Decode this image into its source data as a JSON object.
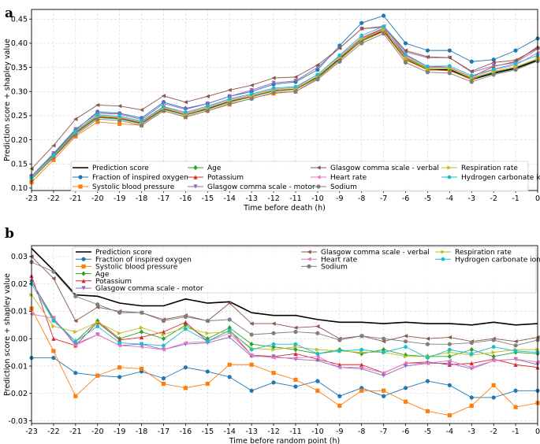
{
  "chart_data": [
    {
      "type": "line",
      "panel_label": "a",
      "xlabel": "Time before death (h)",
      "ylabel": "Prediction score + shapley value",
      "x": [
        -23,
        -22,
        -21,
        -20,
        -19,
        -18,
        -17,
        -16,
        -15,
        -14,
        -13,
        -12,
        -11,
        -10,
        -9,
        -8,
        -7,
        -6,
        -5,
        -4,
        -3,
        -2,
        -1,
        0
      ],
      "xlim": [
        -23,
        0
      ],
      "ylim": [
        0.095,
        0.47
      ],
      "yticks": [
        0.1,
        0.15,
        0.2,
        0.25,
        0.3,
        0.35,
        0.4,
        0.45
      ],
      "grid": true,
      "legend_position": "bottom",
      "series": [
        {
          "name": "Prediction score",
          "color": "#000000",
          "marker": "none",
          "values": [
            0.12,
            0.165,
            0.215,
            0.248,
            0.245,
            0.235,
            0.265,
            0.252,
            0.265,
            0.28,
            0.29,
            0.302,
            0.305,
            0.33,
            0.368,
            0.405,
            0.425,
            0.368,
            0.345,
            0.345,
            0.325,
            0.338,
            0.348,
            0.365
          ]
        },
        {
          "name": "Fraction of inspired oxygen",
          "color": "#1f77b4",
          "marker": "circle",
          "values": [
            0.125,
            0.17,
            0.22,
            0.258,
            0.255,
            0.245,
            0.278,
            0.265,
            0.275,
            0.29,
            0.3,
            0.315,
            0.32,
            0.345,
            0.395,
            0.442,
            0.457,
            0.4,
            0.385,
            0.385,
            0.362,
            0.366,
            0.385,
            0.41
          ]
        },
        {
          "name": "Systolic blood pressure",
          "color": "#ff7f0e",
          "marker": "square",
          "values": [
            0.112,
            0.158,
            0.207,
            0.237,
            0.233,
            0.23,
            0.26,
            0.247,
            0.26,
            0.273,
            0.286,
            0.296,
            0.3,
            0.327,
            0.365,
            0.405,
            0.424,
            0.365,
            0.345,
            0.343,
            0.325,
            0.342,
            0.35,
            0.368
          ]
        },
        {
          "name": "Age",
          "color": "#2ca02c",
          "marker": "diamond",
          "values": [
            0.118,
            0.164,
            0.213,
            0.246,
            0.243,
            0.233,
            0.263,
            0.251,
            0.263,
            0.278,
            0.289,
            0.301,
            0.304,
            0.329,
            0.367,
            0.406,
            0.428,
            0.37,
            0.348,
            0.347,
            0.327,
            0.34,
            0.35,
            0.367
          ]
        },
        {
          "name": "Potassium",
          "color": "#d62728",
          "marker": "triangle",
          "values": [
            0.118,
            0.165,
            0.214,
            0.248,
            0.245,
            0.234,
            0.265,
            0.252,
            0.265,
            0.28,
            0.29,
            0.303,
            0.305,
            0.331,
            0.37,
            0.41,
            0.43,
            0.375,
            0.352,
            0.35,
            0.33,
            0.352,
            0.362,
            0.393
          ]
        },
        {
          "name": "Glasgow comma scale - motor",
          "color": "#9467bd",
          "marker": "triangle-down",
          "values": [
            0.125,
            0.172,
            0.222,
            0.255,
            0.253,
            0.242,
            0.275,
            0.263,
            0.275,
            0.29,
            0.303,
            0.318,
            0.322,
            0.35,
            0.39,
            0.43,
            0.433,
            0.382,
            0.37,
            0.37,
            0.34,
            0.353,
            0.36,
            0.388
          ]
        },
        {
          "name": "Glasgow comma scale - verbal",
          "color": "#8c564b",
          "marker": "triangle-left",
          "values": [
            0.14,
            0.188,
            0.243,
            0.272,
            0.27,
            0.262,
            0.291,
            0.278,
            0.29,
            0.303,
            0.313,
            0.328,
            0.33,
            0.355,
            0.39,
            0.43,
            0.435,
            0.385,
            0.372,
            0.37,
            0.342,
            0.36,
            0.365,
            0.39
          ]
        },
        {
          "name": "Heart rate",
          "color": "#e377c2",
          "marker": "triangle-left",
          "values": [
            0.121,
            0.167,
            0.217,
            0.25,
            0.247,
            0.237,
            0.268,
            0.255,
            0.268,
            0.283,
            0.293,
            0.305,
            0.308,
            0.335,
            0.373,
            0.412,
            0.432,
            0.372,
            0.35,
            0.35,
            0.33,
            0.345,
            0.355,
            0.38
          ]
        },
        {
          "name": "Sodium",
          "color": "#7f7f7f",
          "marker": "circle",
          "values": [
            0.118,
            0.163,
            0.21,
            0.243,
            0.24,
            0.23,
            0.26,
            0.248,
            0.26,
            0.275,
            0.285,
            0.298,
            0.3,
            0.325,
            0.362,
            0.4,
            0.42,
            0.36,
            0.34,
            0.338,
            0.32,
            0.335,
            0.345,
            0.363
          ]
        },
        {
          "name": "Respiration rate",
          "color": "#bcbd22",
          "marker": "triangle-right",
          "values": [
            0.119,
            0.166,
            0.216,
            0.249,
            0.246,
            0.236,
            0.266,
            0.253,
            0.266,
            0.281,
            0.291,
            0.303,
            0.306,
            0.332,
            0.37,
            0.408,
            0.428,
            0.368,
            0.347,
            0.348,
            0.328,
            0.341,
            0.351,
            0.368
          ]
        },
        {
          "name": "Hydrogen carbonate ion",
          "color": "#17becf",
          "marker": "hexagon",
          "values": [
            0.122,
            0.168,
            0.218,
            0.252,
            0.249,
            0.239,
            0.269,
            0.257,
            0.27,
            0.285,
            0.295,
            0.307,
            0.31,
            0.335,
            0.375,
            0.416,
            0.435,
            0.377,
            0.352,
            0.353,
            0.333,
            0.346,
            0.358,
            0.375
          ]
        }
      ]
    },
    {
      "type": "line",
      "panel_label": "b",
      "xlabel": "Time before random point (h)",
      "ylabel": "Prediction score + shapley value",
      "x": [
        -23,
        -22,
        -21,
        -20,
        -19,
        -18,
        -17,
        -16,
        -15,
        -14,
        -13,
        -12,
        -11,
        -10,
        -9,
        -8,
        -7,
        -6,
        -5,
        -4,
        -3,
        -2,
        -1,
        0
      ],
      "xlim": [
        -23,
        0
      ],
      "ylim": [
        -0.031,
        0.034
      ],
      "yticks": [
        -0.03,
        -0.02,
        -0.01,
        0.0,
        0.01,
        0.02,
        0.03
      ],
      "grid": true,
      "legend_position": "top-right",
      "series": [
        {
          "name": "Prediction score",
          "color": "#000000",
          "marker": "none",
          "values": [
            0.033,
            0.025,
            0.016,
            0.0155,
            0.013,
            0.012,
            0.012,
            0.0145,
            0.013,
            0.0135,
            0.0095,
            0.0085,
            0.0085,
            0.007,
            0.006,
            0.006,
            0.0055,
            0.006,
            0.0055,
            0.0055,
            0.005,
            0.006,
            0.005,
            0.0055
          ]
        },
        {
          "name": "Fraction of inspired oxygen",
          "color": "#1f77b4",
          "marker": "circle",
          "values": [
            -0.007,
            -0.007,
            -0.0125,
            -0.0135,
            -0.014,
            -0.012,
            -0.0145,
            -0.0105,
            -0.012,
            -0.014,
            -0.019,
            -0.016,
            -0.0175,
            -0.0155,
            -0.021,
            -0.018,
            -0.021,
            -0.018,
            -0.0155,
            -0.017,
            -0.0215,
            -0.0215,
            -0.019,
            -0.019
          ]
        },
        {
          "name": "Systolic blood pressure",
          "color": "#ff7f0e",
          "marker": "square",
          "values": [
            0.011,
            -0.0045,
            -0.021,
            -0.0135,
            -0.0105,
            -0.011,
            -0.0165,
            -0.018,
            -0.0165,
            -0.0095,
            -0.0095,
            -0.0125,
            -0.015,
            -0.019,
            -0.0245,
            -0.019,
            -0.019,
            -0.023,
            -0.0265,
            -0.028,
            -0.0245,
            -0.017,
            -0.025,
            -0.0235
          ]
        },
        {
          "name": "Age",
          "color": "#2ca02c",
          "marker": "diamond",
          "values": [
            0.021,
            0.007,
            -0.001,
            0.0065,
            0.0,
            0.0025,
            0.0,
            0.005,
            0.0,
            0.004,
            -0.002,
            -0.003,
            -0.004,
            -0.0055,
            -0.004,
            -0.0055,
            -0.004,
            -0.006,
            -0.0065,
            -0.0065,
            -0.004,
            -0.0065,
            -0.005,
            -0.0055
          ]
        },
        {
          "name": "Potassium",
          "color": "#d62728",
          "marker": "triangle",
          "values": [
            0.023,
            0.0,
            -0.0025,
            0.006,
            -0.0005,
            0.0005,
            0.0025,
            0.006,
            -0.001,
            0.003,
            -0.006,
            -0.0065,
            -0.0055,
            -0.0075,
            -0.0095,
            -0.0095,
            -0.0125,
            -0.009,
            -0.0085,
            -0.0095,
            -0.009,
            -0.0075,
            -0.0095,
            -0.0105
          ]
        },
        {
          "name": "Glasgow comma scale - motor",
          "color": "#9467bd",
          "marker": "triangle-down",
          "values": [
            0.021,
            0.0075,
            -0.002,
            0.0015,
            -0.0025,
            -0.002,
            -0.004,
            -0.002,
            -0.0015,
            0.0005,
            -0.0065,
            -0.0065,
            -0.0075,
            -0.008,
            -0.0105,
            -0.011,
            -0.0135,
            -0.01,
            -0.009,
            -0.009,
            -0.011,
            -0.008,
            -0.0075,
            -0.0095
          ]
        },
        {
          "name": "Glasgow comma scale - verbal",
          "color": "#8c564b",
          "marker": "triangle-left",
          "values": [
            0.03,
            0.022,
            0.0065,
            0.0115,
            0.01,
            0.0095,
            0.007,
            0.0085,
            0.0065,
            0.013,
            0.0055,
            0.0055,
            0.004,
            0.0045,
            0.0,
            0.001,
            -0.001,
            0.001,
            0.0,
            0.0005,
            -0.001,
            0.0,
            -0.001,
            0.0005
          ]
        },
        {
          "name": "Heart rate",
          "color": "#e377c2",
          "marker": "triangle-left",
          "values": [
            0.009,
            0.0075,
            -0.0025,
            0.0015,
            -0.0025,
            -0.003,
            -0.004,
            -0.0015,
            -0.001,
            0.002,
            -0.006,
            -0.007,
            -0.007,
            -0.0065,
            -0.0105,
            -0.0105,
            -0.0125,
            -0.009,
            -0.009,
            -0.008,
            -0.0105,
            -0.008,
            -0.0075,
            -0.0085
          ]
        },
        {
          "name": "Sodium",
          "color": "#7f7f7f",
          "marker": "circle",
          "values": [
            0.028,
            0.0245,
            0.0155,
            0.0125,
            0.0095,
            0.0095,
            0.0065,
            0.008,
            0.0065,
            0.007,
            0.0015,
            0.002,
            0.0025,
            0.002,
            -0.0005,
            0.001,
            0.0,
            -0.001,
            -0.002,
            -0.002,
            -0.0015,
            -0.0005,
            -0.0025,
            -0.0005
          ]
        },
        {
          "name": "Respiration rate",
          "color": "#bcbd22",
          "marker": "triangle-right",
          "values": [
            0.016,
            0.0045,
            0.0025,
            0.006,
            0.002,
            0.004,
            0.0015,
            0.004,
            0.002,
            0.0025,
            -0.0035,
            -0.004,
            -0.003,
            -0.004,
            -0.0045,
            -0.005,
            -0.005,
            -0.0065,
            -0.0065,
            -0.005,
            -0.006,
            -0.005,
            -0.004,
            -0.004
          ]
        },
        {
          "name": "Hydrogen carbonate ion",
          "color": "#17becf",
          "marker": "hexagon",
          "values": [
            0.02,
            0.0065,
            -0.001,
            0.0045,
            -0.0015,
            -0.002,
            -0.0025,
            0.0035,
            -0.001,
            0.003,
            -0.004,
            -0.002,
            -0.002,
            -0.0055,
            -0.0045,
            -0.004,
            -0.005,
            -0.003,
            -0.007,
            -0.004,
            -0.0055,
            -0.003,
            -0.0045,
            -0.005
          ]
        }
      ]
    }
  ]
}
